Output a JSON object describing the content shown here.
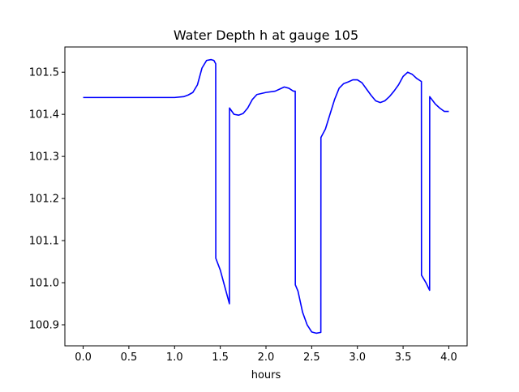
{
  "chart_data": {
    "type": "line",
    "title": "Water Depth h at gauge 105",
    "xlabel": "hours",
    "ylabel": "",
    "xlim": [
      -0.2,
      4.2
    ],
    "ylim": [
      100.85,
      101.56
    ],
    "xticks": [
      0.0,
      0.5,
      1.0,
      1.5,
      2.0,
      2.5,
      3.0,
      3.5,
      4.0
    ],
    "xtick_labels": [
      "0.0",
      "0.5",
      "1.0",
      "1.5",
      "2.0",
      "2.5",
      "3.0",
      "3.5",
      "4.0"
    ],
    "yticks": [
      100.9,
      101.0,
      101.1,
      101.2,
      101.3,
      101.4,
      101.5
    ],
    "ytick_labels": [
      "100.9",
      "101.0",
      "101.1",
      "101.2",
      "101.3",
      "101.4",
      "101.5"
    ],
    "grid": false,
    "line_color": "#0000ff",
    "series": [
      {
        "x": [
          0.0,
          0.3,
          0.6,
          0.9,
          1.0,
          1.1,
          1.15,
          1.2,
          1.25,
          1.3,
          1.35,
          1.4,
          1.43,
          1.45,
          1.451,
          1.5,
          1.55,
          1.6,
          1.601,
          1.65,
          1.7,
          1.75,
          1.8,
          1.85,
          1.9,
          2.0,
          2.1,
          2.15,
          2.2,
          2.25,
          2.3,
          2.32,
          2.321,
          2.35,
          2.4,
          2.45,
          2.5,
          2.55,
          2.6,
          2.601,
          2.65,
          2.7,
          2.75,
          2.8,
          2.85,
          2.9,
          2.95,
          3.0,
          3.05,
          3.1,
          3.15,
          3.2,
          3.25,
          3.3,
          3.35,
          3.4,
          3.45,
          3.5,
          3.55,
          3.6,
          3.65,
          3.7,
          3.701,
          3.75,
          3.79,
          3.791,
          3.85,
          3.9,
          3.95,
          4.0
        ],
        "y": [
          101.44,
          101.44,
          101.44,
          101.44,
          101.44,
          101.442,
          101.446,
          101.452,
          101.47,
          101.51,
          101.528,
          101.53,
          101.528,
          101.52,
          101.058,
          101.03,
          100.99,
          100.95,
          101.415,
          101.4,
          101.398,
          101.402,
          101.415,
          101.435,
          101.447,
          101.452,
          101.455,
          101.46,
          101.465,
          101.462,
          101.455,
          101.455,
          100.995,
          100.98,
          100.93,
          100.9,
          100.883,
          100.88,
          100.882,
          101.345,
          101.365,
          101.4,
          101.435,
          101.462,
          101.473,
          101.477,
          101.482,
          101.482,
          101.475,
          101.46,
          101.445,
          101.432,
          101.428,
          101.432,
          101.442,
          101.455,
          101.47,
          101.49,
          101.5,
          101.495,
          101.485,
          101.478,
          101.018,
          101.0,
          100.982,
          101.442,
          101.425,
          101.415,
          101.407,
          101.407
        ]
      }
    ]
  }
}
